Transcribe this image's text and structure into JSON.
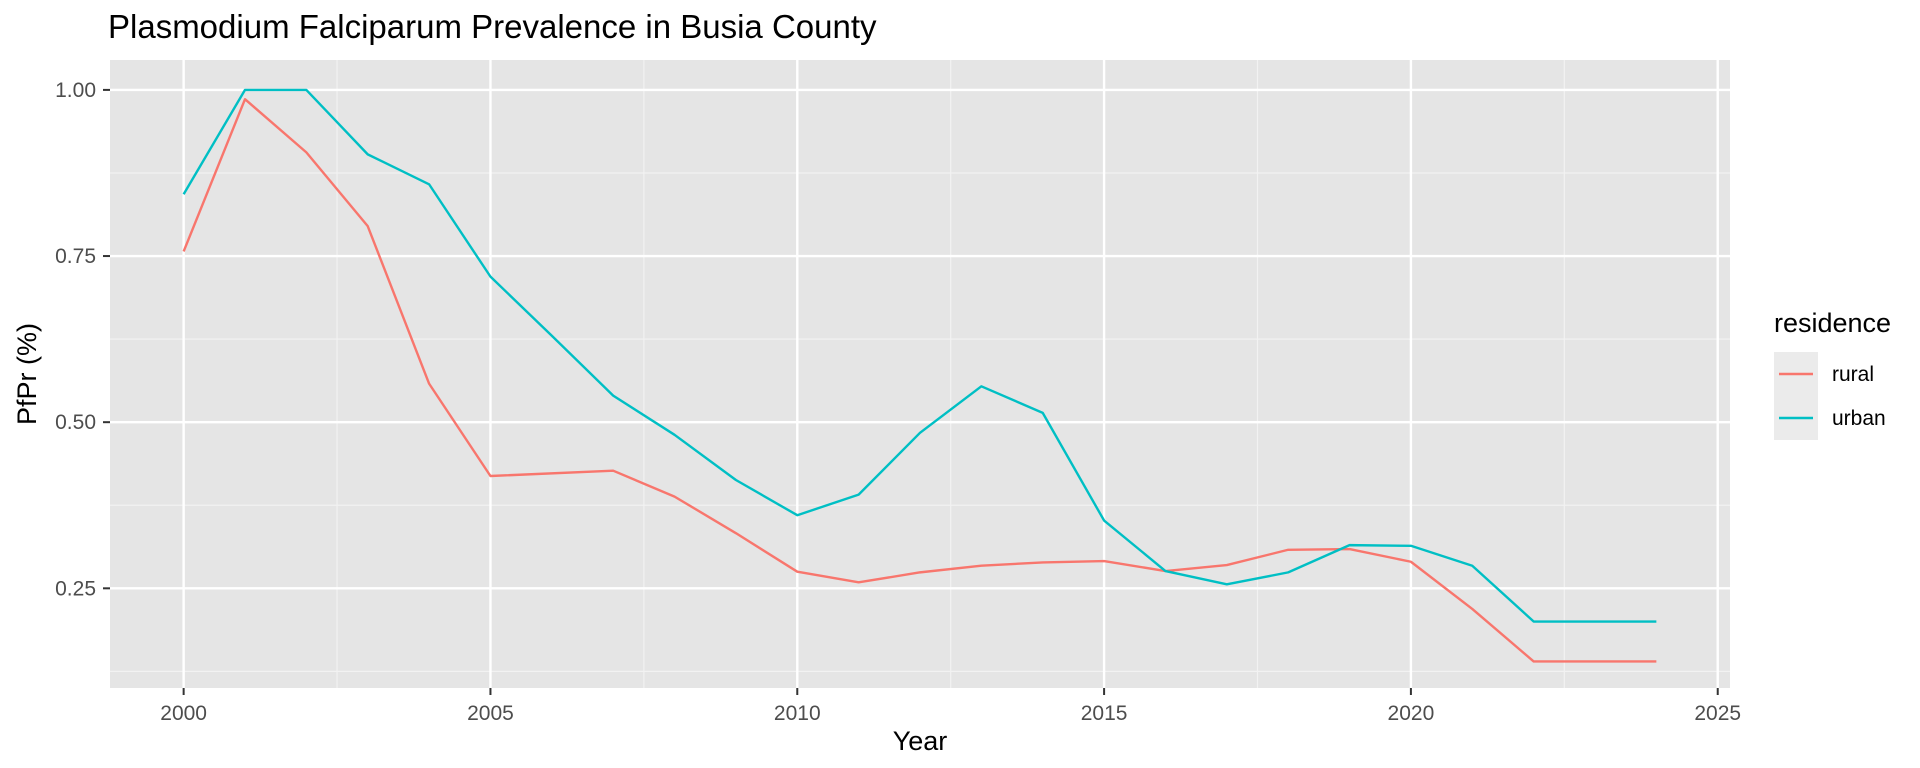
{
  "chart_data": {
    "type": "line",
    "title": "Plasmodium Falciparum Prevalence in Busia County",
    "xlabel": "Year",
    "ylabel": "PfPr (%)",
    "xlim": [
      1998.8,
      2025.2
    ],
    "ylim": [
      0.1,
      1.045
    ],
    "x_ticks": [
      2000,
      2005,
      2010,
      2015,
      2020,
      2025
    ],
    "x_tick_labels": [
      "2000",
      "2005",
      "2010",
      "2015",
      "2020",
      "2025"
    ],
    "y_ticks": [
      0.25,
      0.5,
      0.75,
      1.0
    ],
    "y_tick_labels": [
      "0.25",
      "0.50",
      "0.75",
      "1.00"
    ],
    "grid": true,
    "panel_background": "#e5e5e5",
    "legend": {
      "title": "residence",
      "position": "right"
    },
    "series": [
      {
        "name": "rural",
        "color": "#f8766d",
        "x": [
          2000,
          2001,
          2002,
          2003,
          2004,
          2005,
          2007,
          2008,
          2009,
          2010,
          2011,
          2012,
          2013,
          2014,
          2015,
          2016,
          2017,
          2018,
          2019,
          2020,
          2021,
          2022,
          2023,
          2024
        ],
        "y": [
          0.757,
          0.986,
          0.906,
          0.795,
          0.558,
          0.419,
          0.427,
          0.388,
          0.333,
          0.275,
          0.259,
          0.274,
          0.284,
          0.289,
          0.291,
          0.276,
          0.285,
          0.308,
          0.309,
          0.29,
          0.219,
          0.14,
          0.14,
          0.14
        ]
      },
      {
        "name": "urban",
        "color": "#00bfc4",
        "x": [
          2000,
          2001,
          2002,
          2003,
          2004,
          2005,
          2006,
          2007,
          2008,
          2009,
          2010,
          2011,
          2012,
          2013,
          2014,
          2015,
          2016,
          2017,
          2018,
          2019,
          2020,
          2021,
          2022,
          2023,
          2024
        ],
        "y": [
          0.843,
          1.0,
          1.0,
          0.903,
          0.858,
          0.719,
          0.63,
          0.54,
          0.481,
          0.413,
          0.36,
          0.391,
          0.484,
          0.554,
          0.514,
          0.352,
          0.276,
          0.256,
          0.274,
          0.315,
          0.314,
          0.284,
          0.2,
          0.2,
          0.2
        ]
      }
    ]
  }
}
